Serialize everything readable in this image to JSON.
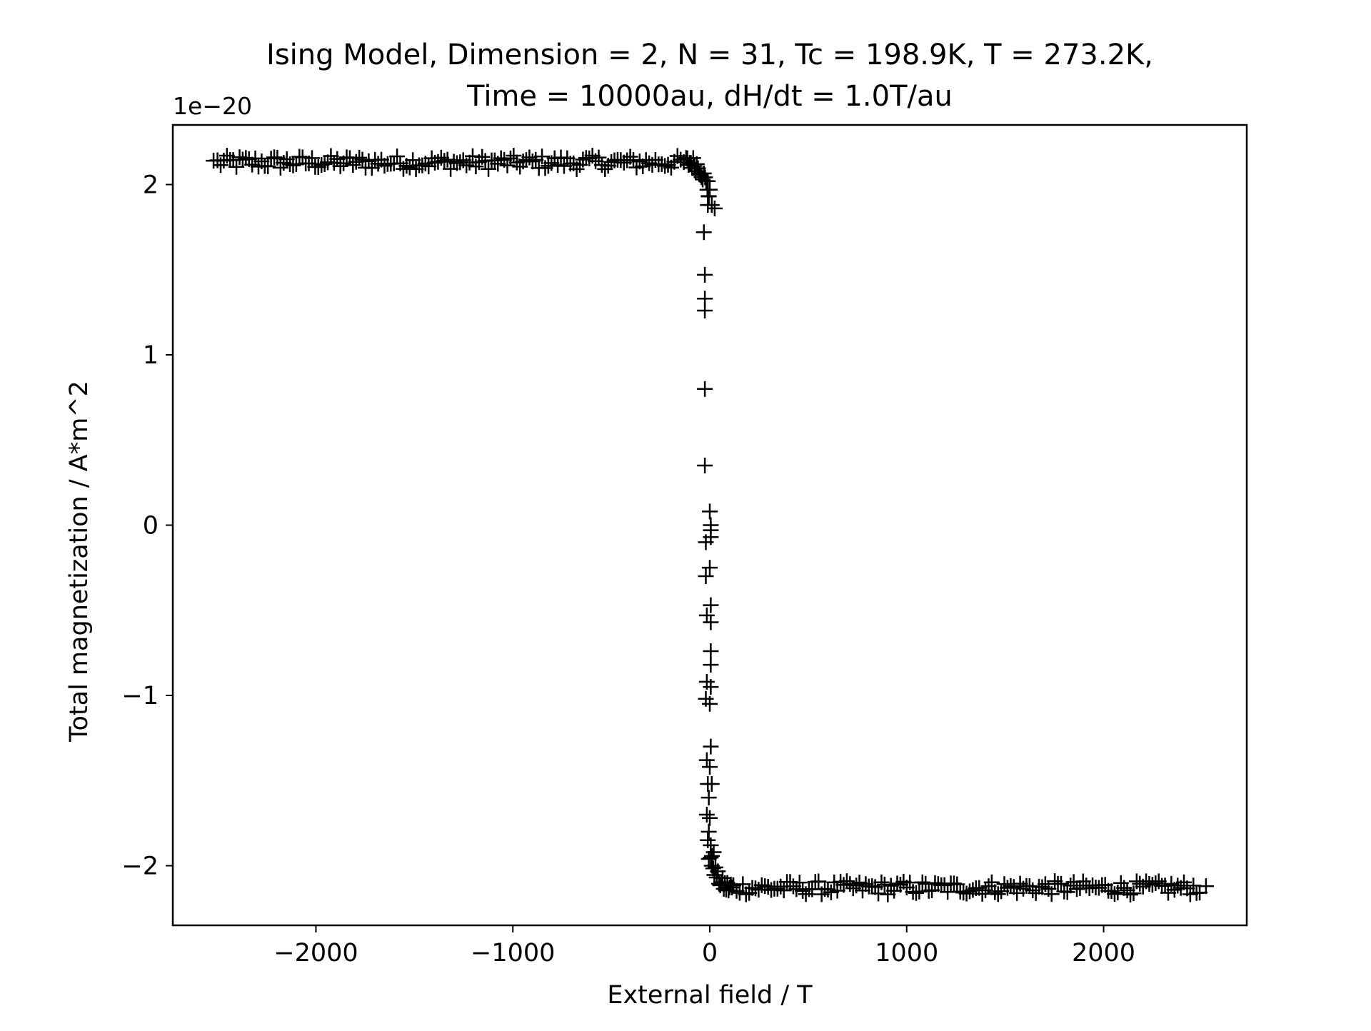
{
  "chart_data": {
    "type": "scatter",
    "title_line1": "Ising Model, Dimension = 2, N = 31, Tc = 198.9K, T = 273.2K,",
    "title_line2": "Time = 10000au, dH/dt = 1.0T/au",
    "xlabel": "External field / T",
    "ylabel": "Total magnetization / A*m^2",
    "y_offset_label": "1e−20",
    "xlim": [
      -2727,
      2727
    ],
    "ylim": [
      -2.35,
      2.35
    ],
    "x_ticks": [
      {
        "value": -2000,
        "label": "−2000"
      },
      {
        "value": -1000,
        "label": "−1000"
      },
      {
        "value": 0,
        "label": "0"
      },
      {
        "value": 1000,
        "label": "1000"
      },
      {
        "value": 2000,
        "label": "2000"
      }
    ],
    "y_ticks": [
      {
        "value": -2,
        "label": "−2"
      },
      {
        "value": -1,
        "label": "−1"
      },
      {
        "value": 0,
        "label": "0"
      },
      {
        "value": 1,
        "label": "1"
      },
      {
        "value": 2,
        "label": "2"
      }
    ],
    "grid": false,
    "legend": "none",
    "marker": "+",
    "color": "#000000",
    "band_upper": {
      "x_from": -2500,
      "x_to": 0,
      "y_center": 2.13,
      "y_spread": 0.04
    },
    "band_lower": {
      "x_from": 0,
      "x_to": 2500,
      "y_center": -2.13,
      "y_spread": 0.04
    },
    "transition_points": [
      {
        "x": -30,
        "y": 1.72
      },
      {
        "x": -25,
        "y": 1.47
      },
      {
        "x": -25,
        "y": 1.33
      },
      {
        "x": -25,
        "y": 1.26
      },
      {
        "x": -25,
        "y": 0.8
      },
      {
        "x": -25,
        "y": 0.35
      },
      {
        "x": 0,
        "y": 0.08
      },
      {
        "x": 5,
        "y": 0.0
      },
      {
        "x": 5,
        "y": -0.03
      },
      {
        "x": 5,
        "y": -0.07
      },
      {
        "x": -20,
        "y": -0.1
      },
      {
        "x": 0,
        "y": -0.25
      },
      {
        "x": -20,
        "y": -0.3
      },
      {
        "x": 5,
        "y": -0.47
      },
      {
        "x": -15,
        "y": -0.53
      },
      {
        "x": 5,
        "y": -0.57
      },
      {
        "x": 5,
        "y": -0.74
      },
      {
        "x": 5,
        "y": -0.82
      },
      {
        "x": -15,
        "y": -0.92
      },
      {
        "x": 5,
        "y": -0.95
      },
      {
        "x": -20,
        "y": -1.02
      },
      {
        "x": 0,
        "y": -1.05
      },
      {
        "x": 5,
        "y": -1.3
      },
      {
        "x": -15,
        "y": -1.38
      },
      {
        "x": 0,
        "y": -1.42
      },
      {
        "x": -10,
        "y": -1.52
      },
      {
        "x": 10,
        "y": -1.52
      },
      {
        "x": -5,
        "y": -1.6
      },
      {
        "x": -15,
        "y": -1.7
      },
      {
        "x": 0,
        "y": -1.72
      },
      {
        "x": -5,
        "y": -1.8
      },
      {
        "x": -10,
        "y": -1.85
      },
      {
        "x": 5,
        "y": -1.88
      },
      {
        "x": 20,
        "y": -1.92
      },
      {
        "x": -5,
        "y": -1.96
      },
      {
        "x": 10,
        "y": -2.0
      },
      {
        "x": -10,
        "y": 1.88
      },
      {
        "x": 10,
        "y": 1.88
      },
      {
        "x": 25,
        "y": 1.86
      },
      {
        "x": -5,
        "y": 1.93
      },
      {
        "x": 0,
        "y": 1.97
      },
      {
        "x": -10,
        "y": 2.02
      }
    ]
  }
}
